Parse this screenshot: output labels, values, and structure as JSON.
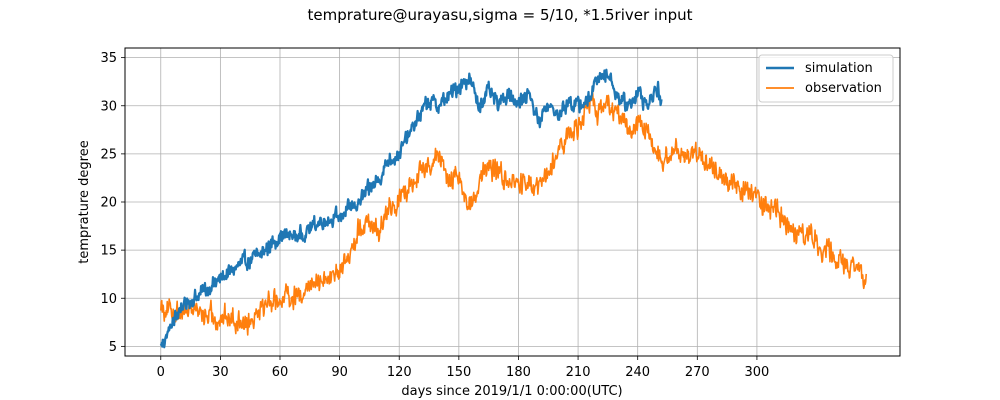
{
  "chart_data": {
    "type": "line",
    "title": "temprature@urayasu,sigma = 5/10, *1.5river input",
    "xlabel": "days since 2019/1/1 0:00:00(UTC)",
    "ylabel": "temprature degree",
    "xlim": [
      -18,
      372
    ],
    "ylim": [
      4,
      36
    ],
    "xticks": [
      0,
      30,
      60,
      90,
      120,
      150,
      180,
      210,
      240,
      270,
      300
    ],
    "yticks": [
      5,
      10,
      15,
      20,
      25,
      30,
      35
    ],
    "grid": true,
    "legend_position": "top-right",
    "series": [
      {
        "name": "simulation",
        "color": "#1f77b4",
        "noise": 0.7,
        "x": [
          0,
          5,
          10,
          20,
          30,
          40,
          50,
          60,
          70,
          80,
          90,
          100,
          110,
          115,
          120,
          125,
          130,
          135,
          140,
          150,
          155,
          160,
          165,
          170,
          175,
          180,
          185,
          190,
          195,
          200,
          205,
          210,
          215,
          220,
          225,
          230,
          235,
          240,
          245,
          250,
          252
        ],
        "y": [
          5.0,
          7.0,
          9.0,
          10.5,
          12.0,
          13.5,
          14.5,
          16.5,
          16.5,
          18.0,
          18.5,
          20.0,
          22.5,
          24.5,
          25.0,
          27.0,
          29.0,
          30.5,
          30.0,
          32.0,
          33.0,
          30.0,
          31.5,
          30.0,
          31.5,
          30.0,
          31.5,
          28.5,
          30.0,
          29.0,
          30.5,
          30.0,
          30.5,
          33.0,
          33.5,
          31.0,
          30.0,
          31.5,
          30.0,
          32.0,
          30.0
        ]
      },
      {
        "name": "observation",
        "color": "#ff7f0e",
        "noise": 1.0,
        "x": [
          0,
          5,
          15,
          25,
          35,
          45,
          50,
          60,
          70,
          80,
          90,
          95,
          100,
          105,
          110,
          115,
          120,
          125,
          130,
          135,
          140,
          145,
          150,
          155,
          160,
          165,
          170,
          175,
          180,
          185,
          190,
          195,
          200,
          205,
          210,
          215,
          220,
          225,
          230,
          235,
          240,
          245,
          250,
          255,
          260,
          270,
          280,
          290,
          300,
          310,
          320,
          330,
          340,
          350,
          355
        ],
        "y": [
          9.5,
          8.5,
          9.0,
          8.0,
          8.0,
          7.5,
          9.5,
          10.0,
          10.5,
          12.0,
          12.5,
          14.5,
          17.5,
          18.0,
          17.0,
          19.5,
          20.0,
          22.0,
          23.0,
          24.0,
          25.0,
          22.0,
          23.0,
          19.0,
          22.0,
          23.5,
          23.0,
          22.0,
          22.0,
          21.5,
          21.0,
          23.0,
          25.0,
          27.0,
          28.0,
          30.0,
          29.5,
          30.5,
          29.0,
          27.5,
          28.0,
          27.0,
          24.5,
          24.5,
          25.0,
          25.0,
          23.0,
          21.5,
          20.5,
          19.0,
          17.0,
          16.0,
          14.0,
          13.0,
          12.0
        ]
      }
    ]
  }
}
